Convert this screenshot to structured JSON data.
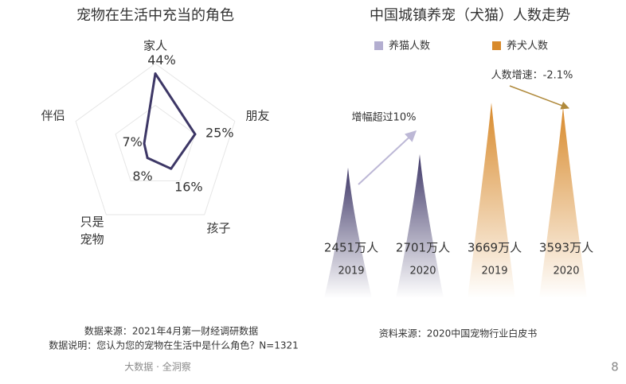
{
  "chart_data": [
    {
      "type": "radar",
      "title": "宠物在生活中充当的角色",
      "categories": [
        "家人",
        "朋友",
        "孩子",
        "只是宠物",
        "伴侣"
      ],
      "values": [
        44,
        25,
        16,
        8,
        7
      ],
      "value_labels": [
        "44%",
        "25%",
        "16%",
        "8%",
        "7%"
      ],
      "rlim": [
        0,
        50
      ],
      "color": "#3d3766",
      "notes": [
        "数据来源：2021年4月第一财经调研数据",
        "数据说明：您认为您的宠物在生活中是什么角色？N=1321"
      ]
    },
    {
      "type": "spike",
      "title": "中国城镇养宠（犬猫）人数走势",
      "categories": [
        "2019",
        "2020"
      ],
      "series": [
        {
          "name": "养猫人数",
          "color": "#4a4275",
          "legend_color": "#b3aed0",
          "values": [
            2451,
            2701
          ],
          "value_labels": [
            "2451万人",
            "2701万人"
          ]
        },
        {
          "name": "养犬人数",
          "color": "#d88a2c",
          "legend_color": "#d88a2c",
          "values": [
            3669,
            3593
          ],
          "value_labels": [
            "3669万人",
            "3593万人"
          ]
        }
      ],
      "annotations": [
        "增幅超过10%",
        "人数增速：-2.1%"
      ],
      "source": "资料来源：2020中国宠物行业白皮书"
    }
  ],
  "footer": {
    "tagline": "大数据 · 全洞察",
    "page": "8"
  }
}
